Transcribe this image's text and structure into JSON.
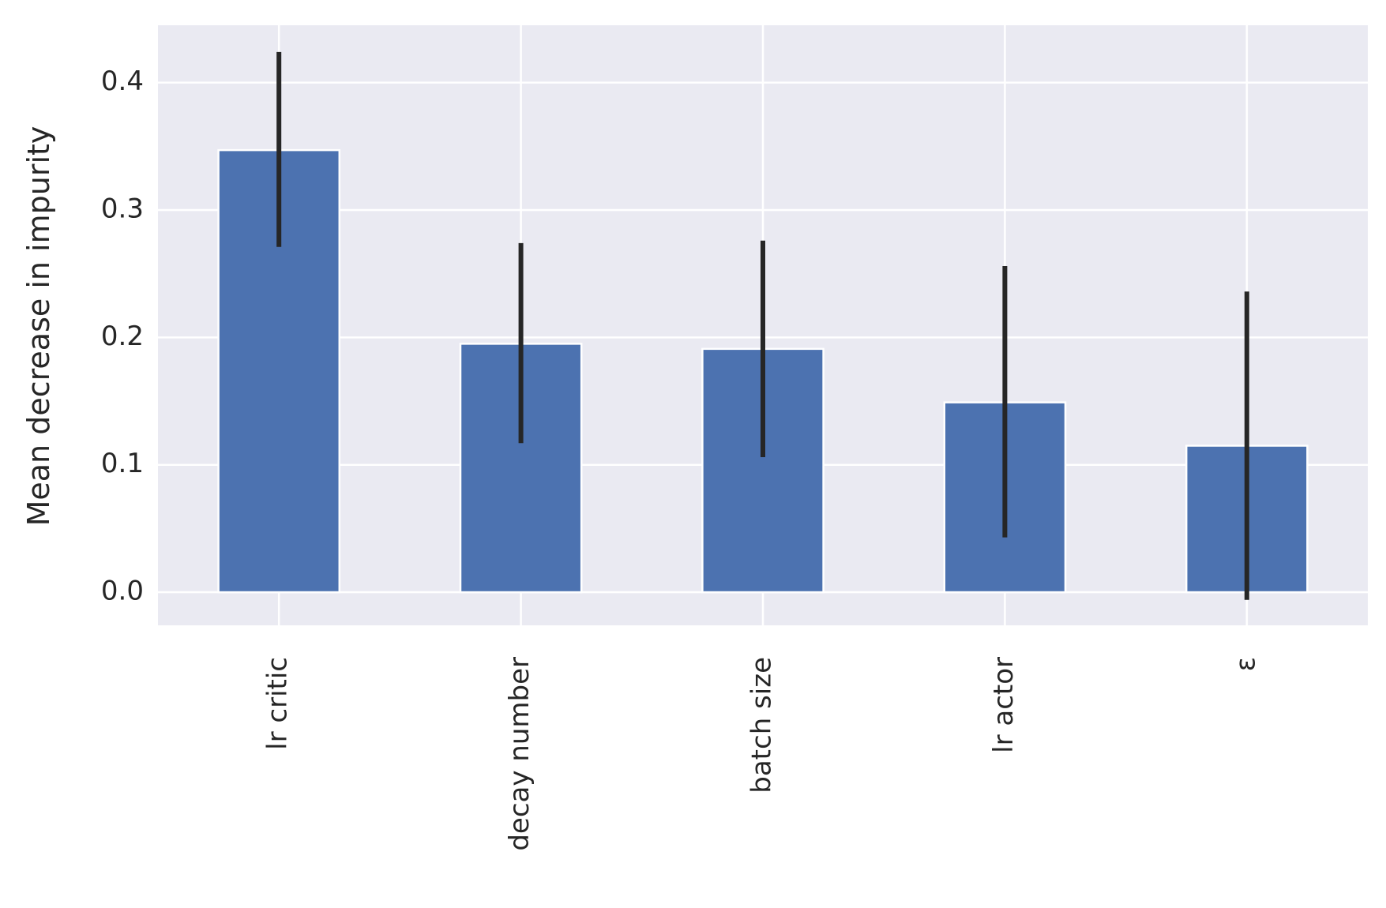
{
  "chart_data": {
    "type": "bar",
    "title": "",
    "xlabel": "",
    "ylabel": "Mean decrease in impurity",
    "categories": [
      "lr critic",
      "decay number",
      "batch size",
      "lr actor",
      "ε"
    ],
    "values": [
      0.347,
      0.195,
      0.191,
      0.149,
      0.115
    ],
    "error_low": [
      0.271,
      0.117,
      0.106,
      0.043,
      -0.006
    ],
    "error_high": [
      0.424,
      0.274,
      0.276,
      0.256,
      0.236
    ],
    "ylim": [
      -0.026,
      0.445
    ],
    "yticks": [
      0.0,
      0.1,
      0.2,
      0.3,
      0.4
    ],
    "ytick_labels": [
      "0.0",
      "0.1",
      "0.2",
      "0.3",
      "0.4"
    ],
    "grid": true,
    "legend": "none",
    "colors": {
      "bar": "#4c72b0",
      "error": "#262626",
      "plot_background": "#eaeaf2",
      "grid": "#ffffff"
    }
  }
}
